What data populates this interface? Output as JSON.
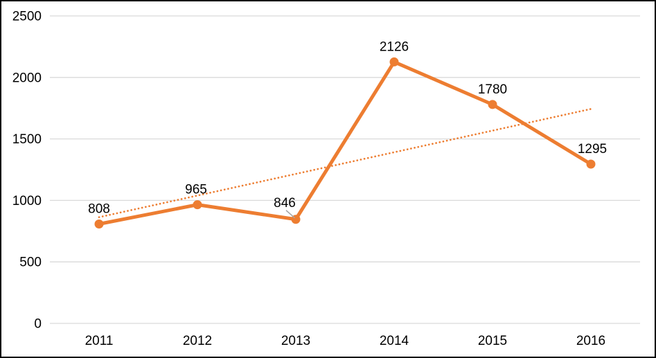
{
  "frame": {
    "background": "#FFFFFF",
    "border_color": "#000000"
  },
  "chart_data": {
    "type": "line",
    "title": "",
    "xlabel": "",
    "ylabel": "",
    "categories": [
      "2011",
      "2012",
      "2013",
      "2014",
      "2015",
      "2016"
    ],
    "values": [
      808,
      965,
      846,
      2126,
      1780,
      1295
    ],
    "data_labels": [
      "808",
      "965",
      "846",
      "2126",
      "1780",
      "1295"
    ],
    "ylim": [
      0,
      2500
    ],
    "yticks": [
      0,
      500,
      1000,
      1500,
      2000,
      2500
    ],
    "grid": true,
    "legend": "none",
    "marker": "circle",
    "series_color": "#ED7D31",
    "gridline_color": "#D9D9D9",
    "label_color": "#000000",
    "leader_line_color": "#A6A6A6",
    "trendline": {
      "fit": "linear",
      "style": "dotted",
      "color": "#ED7D31"
    },
    "label_layout": [
      {
        "dx": 0,
        "dy": 0,
        "leader": false
      },
      {
        "dx": -2,
        "dy": 0,
        "leader": false
      },
      {
        "dx": -16,
        "dy": -2,
        "leader": true
      },
      {
        "dx": 0,
        "dy": 0,
        "leader": false
      },
      {
        "dx": 0,
        "dy": 0,
        "leader": false
      },
      {
        "dx": 2,
        "dy": 0,
        "leader": false
      }
    ]
  }
}
